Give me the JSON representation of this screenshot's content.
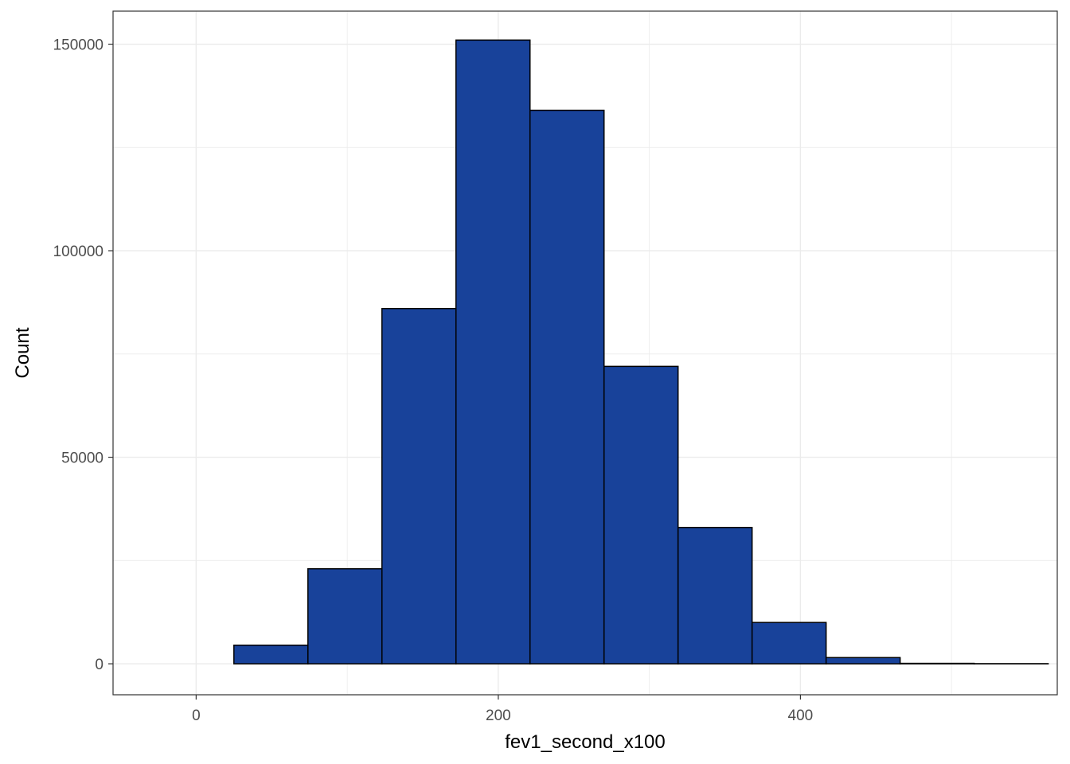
{
  "chart_data": {
    "type": "bar",
    "subtype": "histogram",
    "title": "",
    "xlabel": "fev1_second_x100",
    "ylabel": "Count",
    "xlim": [
      -55,
      570
    ],
    "ylim": [
      -7500,
      158000
    ],
    "x_ticks": [
      0,
      200,
      400
    ],
    "x_minor_ticks": [
      100,
      300,
      500
    ],
    "y_ticks": [
      0,
      50000,
      100000,
      150000
    ],
    "y_minor_ticks": [
      25000,
      75000,
      125000
    ],
    "x_tick_labels": [
      "0",
      "200",
      "400"
    ],
    "y_tick_labels": [
      "0",
      "50000",
      "100000",
      "150000"
    ],
    "bins": [
      {
        "x_start": -24,
        "x_end": 25,
        "count": 0
      },
      {
        "x_start": 25,
        "x_end": 74,
        "count": 4500
      },
      {
        "x_start": 74,
        "x_end": 123,
        "count": 23000
      },
      {
        "x_start": 123,
        "x_end": 172,
        "count": 86000
      },
      {
        "x_start": 172,
        "x_end": 221,
        "count": 151000
      },
      {
        "x_start": 221,
        "x_end": 270,
        "count": 134000
      },
      {
        "x_start": 270,
        "x_end": 319,
        "count": 72000
      },
      {
        "x_start": 319,
        "x_end": 368,
        "count": 33000
      },
      {
        "x_start": 368,
        "x_end": 417,
        "count": 10000
      },
      {
        "x_start": 417,
        "x_end": 466,
        "count": 1500
      },
      {
        "x_start": 466,
        "x_end": 515,
        "count": 100
      },
      {
        "x_start": 515,
        "x_end": 564,
        "count": 30
      }
    ],
    "fill_color": "#18429a",
    "edge_color": "#000000",
    "grid": true,
    "grid_color": "#ebebeb",
    "panel_border_color": "#333333",
    "legend": "none"
  }
}
